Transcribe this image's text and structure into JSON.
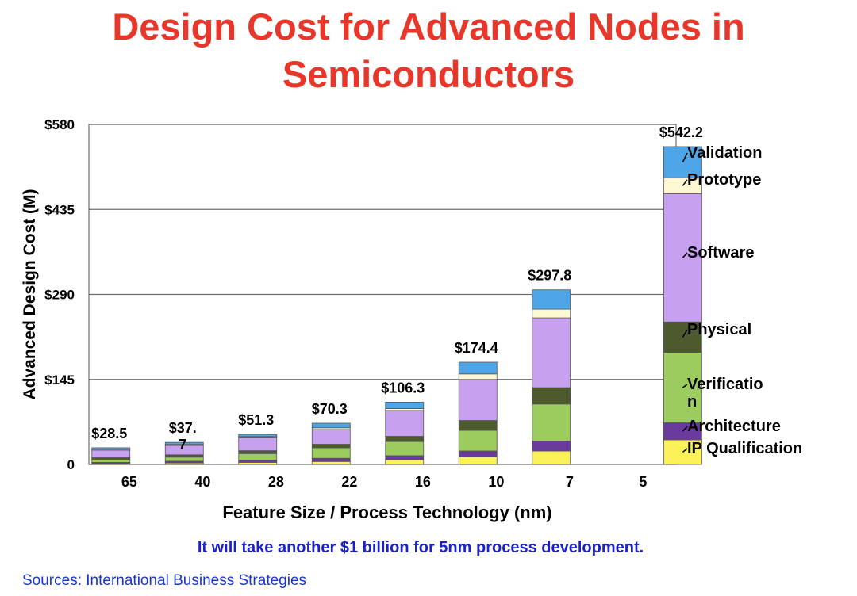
{
  "title_lines": [
    "Design Cost for Advanced Nodes in",
    "Semiconductors"
  ],
  "footnote": "It will take another  $1 billion for 5nm process development.",
  "source": "Sources: International Business Strategies",
  "colors": {
    "title": "#e8362a",
    "IP Qualification": "#fbf25a",
    "Architecture": "#6a3a9c",
    "Verification": "#9ccb5e",
    "Physical": "#4d5a2e",
    "Software": "#c8a0f0",
    "Prototype": "#fdf8d2",
    "Validation": "#4ea6e8"
  },
  "chart_data": {
    "type": "bar",
    "stacked": true,
    "title": "Design Cost for Advanced Nodes in Semiconductors",
    "xlabel": "Feature Size / Process Technology (nm)",
    "ylabel": "Advanced Design Cost (M)",
    "ylim": [
      0,
      580
    ],
    "yticks": [
      0,
      145,
      290,
      435,
      580
    ],
    "ytick_labels": [
      "0",
      "$145",
      "$290",
      "$435",
      "$580"
    ],
    "categories": [
      "65",
      "40",
      "28",
      "22",
      "16",
      "10",
      "7",
      "5"
    ],
    "totals": [
      28.5,
      37.7,
      51.3,
      70.3,
      106.3,
      174.4,
      297.8,
      542.2
    ],
    "total_labels": [
      "$28.5",
      "$37.\n7",
      "$51.3",
      "$70.3",
      "$106.3",
      "$174.4",
      "$297.8",
      "$542.2"
    ],
    "legend_order": [
      "Validation",
      "Prototype",
      "Software",
      "Physical",
      "Verificatio\nn",
      "Architecture",
      "IP Qualification"
    ],
    "series": [
      {
        "name": "IP Qualification",
        "values": [
          1.5,
          2.5,
          3.5,
          5,
          8,
          13,
          23,
          42
        ]
      },
      {
        "name": "Architecture",
        "values": [
          2,
          3,
          4,
          5.5,
          7,
          10,
          17,
          29
        ]
      },
      {
        "name": "Verification",
        "values": [
          5,
          7,
          11,
          18,
          24,
          35,
          63,
          120
        ]
      },
      {
        "name": "Physical",
        "values": [
          3,
          4,
          5,
          6,
          9,
          17,
          28,
          52
        ]
      },
      {
        "name": "Software",
        "values": [
          13,
          16,
          22,
          25,
          44,
          70,
          119,
          219
        ]
      },
      {
        "name": "Prototype",
        "values": [
          1.5,
          1.7,
          2,
          3,
          3.3,
          9.4,
          15,
          27
        ]
      },
      {
        "name": "Validation",
        "values": [
          2.5,
          3.5,
          3.8,
          7.8,
          11,
          20,
          32.8,
          53.2
        ]
      }
    ]
  }
}
